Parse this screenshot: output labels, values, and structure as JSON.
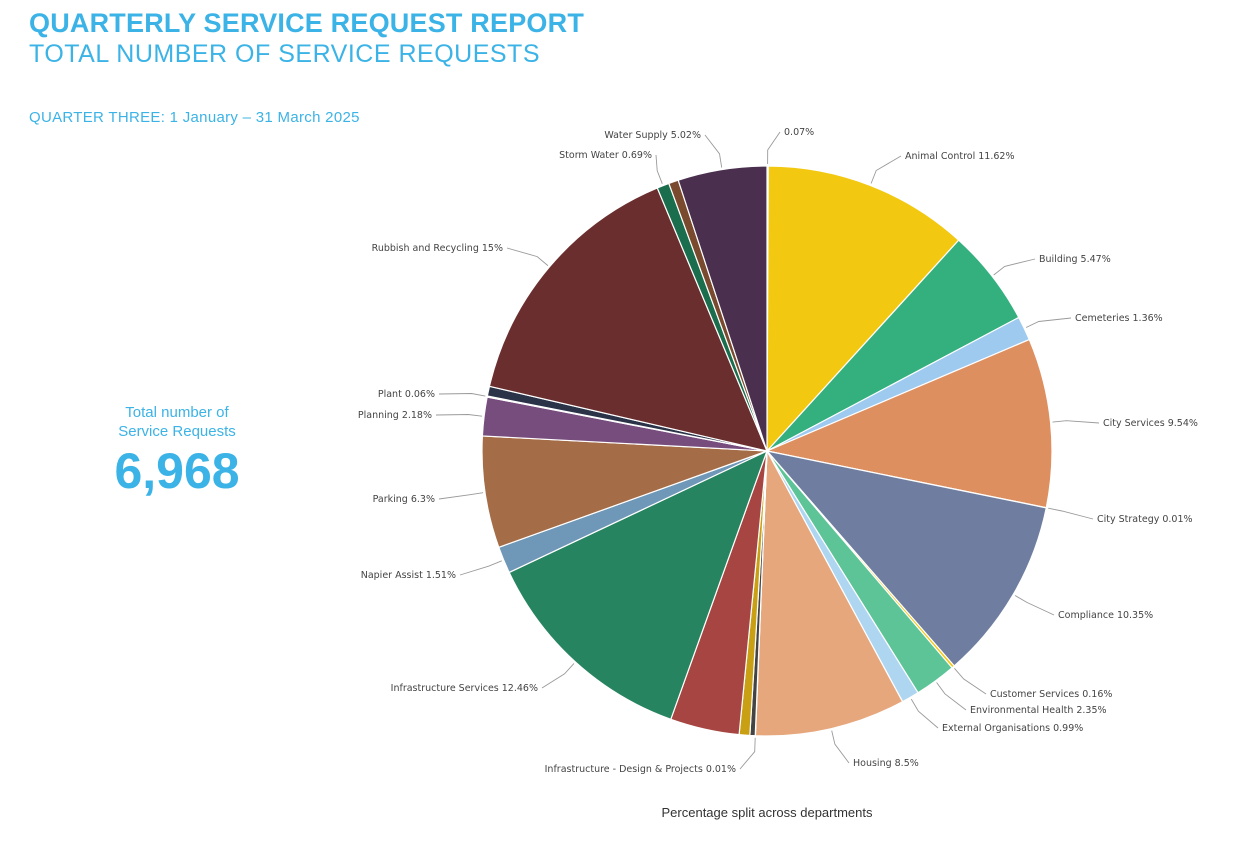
{
  "header": {
    "title": "QUARTERLY SERVICE REQUEST REPORT",
    "subtitle": "TOTAL NUMBER OF SERVICE REQUESTS",
    "quarter": "QUARTER THREE: 1 January – 31 March 2025"
  },
  "summary": {
    "label_line1": "Total number of",
    "label_line2": "Service Requests",
    "value": "6,968"
  },
  "caption": "Percentage split across departments",
  "chart_data": {
    "type": "pie",
    "start_angle_deg": 0,
    "direction": "clockwise",
    "slices": [
      {
        "label": "0.07%",
        "value": 0.07,
        "color": "#2f4f8c"
      },
      {
        "label": "Animal Control 11.62%",
        "value": 11.62,
        "color": "#f2c811"
      },
      {
        "label": "Building 5.47%",
        "value": 5.47,
        "color": "#34b07f"
      },
      {
        "label": "Cemeteries 1.36%",
        "value": 1.36,
        "color": "#9fcaf0"
      },
      {
        "label": "City Services 9.54%",
        "value": 9.54,
        "color": "#de8f5f"
      },
      {
        "label": "City Strategy 0.01%",
        "value": 0.01,
        "color": "#444444"
      },
      {
        "label": "Compliance 10.35%",
        "value": 10.35,
        "color": "#6f7ea0"
      },
      {
        "label": "Customer Services 0.16%",
        "value": 0.16,
        "color": "#f2c811"
      },
      {
        "label": "Environmental Health 2.35%",
        "value": 2.35,
        "color": "#5cc497"
      },
      {
        "label": "External Organisations 0.99%",
        "value": 0.99,
        "color": "#aed6f1"
      },
      {
        "label": "Housing 8.5%",
        "value": 8.5,
        "color": "#e6a77d"
      },
      {
        "label": "Infrastructure - Design & Projects 0.01%",
        "value": 0.01,
        "color": "#5b6276"
      },
      {
        "label": "",
        "value": 0.3,
        "color": "#444444"
      },
      {
        "label": "",
        "value": 0.6,
        "color": "#c9a013"
      },
      {
        "label": "",
        "value": 3.9,
        "color": "#a64541"
      },
      {
        "label": "Infrastructure Services 12.46%",
        "value": 12.46,
        "color": "#278460"
      },
      {
        "label": "Napier Assist 1.51%",
        "value": 1.51,
        "color": "#6f97b7"
      },
      {
        "label": "Parking 6.3%",
        "value": 6.3,
        "color": "#a56d47"
      },
      {
        "label": "Planning 2.18%",
        "value": 2.18,
        "color": "#774d7e"
      },
      {
        "label": "Plant 0.06%",
        "value": 0.06,
        "color": "#ffffff"
      },
      {
        "label": "",
        "value": 0.55,
        "color": "#2a3347"
      },
      {
        "label": "Rubbish and Recycling 15%",
        "value": 15.0,
        "color": "#6b2e2e"
      },
      {
        "label": "Storm Water 0.69%",
        "value": 0.69,
        "color": "#1a6e4e"
      },
      {
        "label": "",
        "value": 0.55,
        "color": "#7a4a2e"
      },
      {
        "label": "Water Supply 5.02%",
        "value": 5.02,
        "color": "#4a2f4f"
      }
    ]
  }
}
